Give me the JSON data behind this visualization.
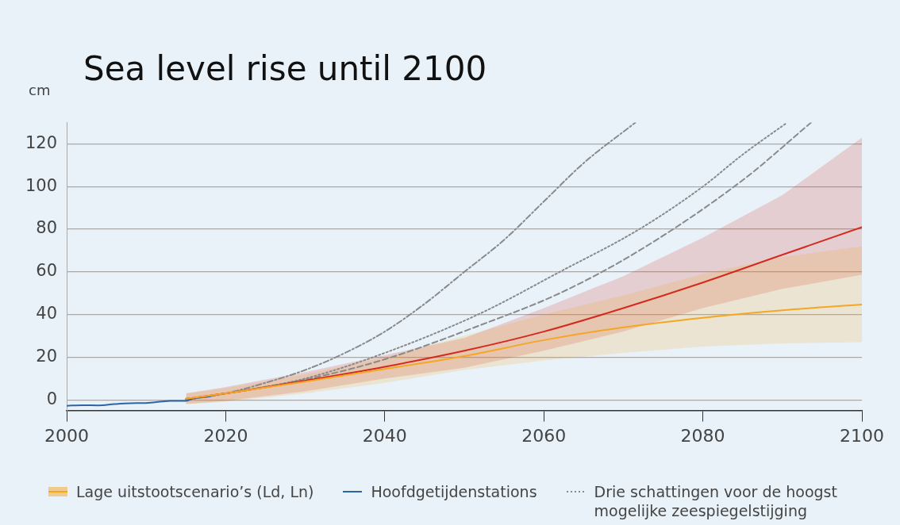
{
  "chart_data": {
    "type": "line",
    "title": "Sea level rise until 2100",
    "ylabel": "cm",
    "xlim": [
      2000,
      2100
    ],
    "xticks": [
      2000,
      2020,
      2040,
      2060,
      2080,
      2100
    ],
    "ylim": [
      -5,
      130
    ],
    "yticks": [
      0,
      20,
      40,
      60,
      80,
      100,
      120
    ],
    "grid": "y",
    "legend": "bottom",
    "marker": "none",
    "series": [
      {
        "name": "Lage uitstootscenario’s (Ld, Ln)",
        "color": "#f5a623",
        "line_style": "solid",
        "x": [
          2015,
          2020,
          2030,
          2040,
          2050,
          2060,
          2070,
          2080,
          2090,
          2100
        ],
        "values": [
          0.5,
          3,
          8.5,
          14.5,
          20.5,
          28,
          34,
          38.5,
          42,
          44.7
        ],
        "lower": [
          -2,
          -1,
          3,
          8,
          14,
          18.5,
          22,
          25,
          26.5,
          27
        ],
        "upper": [
          3,
          5.5,
          12,
          20,
          30,
          40,
          49,
          59,
          67,
          72
        ]
      },
      {
        "color": "#d42a1e",
        "line_style": "solid",
        "x": [
          2015,
          2020,
          2030,
          2040,
          2050,
          2060,
          2070,
          2080,
          2090,
          2100
        ],
        "values": [
          0.5,
          3,
          9,
          15.5,
          23,
          32,
          43,
          55,
          68,
          81
        ],
        "lower": [
          -2,
          -0.5,
          4,
          10,
          15,
          23,
          32,
          43,
          52,
          58.6
        ],
        "upper": [
          3,
          6,
          13,
          21,
          29,
          43,
          58,
          76,
          96,
          123
        ]
      },
      {
        "name": "Hoofdgetijdenstations",
        "color": "#2c64a6",
        "line_style": "solid",
        "x": [
          2000,
          2002,
          2004,
          2006,
          2008,
          2010,
          2012,
          2013,
          2015,
          2016,
          2018
        ],
        "values": [
          -2.8,
          -2.5,
          -2.6,
          -2,
          -1.6,
          -1.5,
          -0.8,
          -0.5,
          -0.5,
          0.8,
          1.5
        ]
      },
      {
        "name": "Drie schattingen voor de hoogst mogelijke zeespiegelstijging",
        "color": "#8a8a8a",
        "line_style": "dotted",
        "x": [
          2015,
          2020,
          2030,
          2040,
          2052,
          2062,
          2072,
          2080,
          2085,
          2090.6
        ],
        "values": [
          0,
          3,
          10,
          22,
          40.5,
          60,
          80,
          100,
          115,
          130
        ]
      },
      {
        "color": "#8a8a8a",
        "line_style": "dashed",
        "x": [
          2015,
          2020,
          2030,
          2040,
          2052,
          2062,
          2072,
          2085,
          2093.6
        ],
        "values": [
          0,
          3,
          9.5,
          19,
          35,
          50,
          70,
          103,
          130
        ]
      },
      {
        "color": "#8a8a8a",
        "line_style": "dashdot",
        "x": [
          2015,
          2020,
          2025,
          2030,
          2035,
          2040,
          2045,
          2050,
          2055,
          2060,
          2065,
          2071.5
        ],
        "values": [
          0,
          3,
          8,
          14,
          22,
          32,
          45,
          60,
          75,
          93,
          111,
          130
        ]
      }
    ]
  }
}
